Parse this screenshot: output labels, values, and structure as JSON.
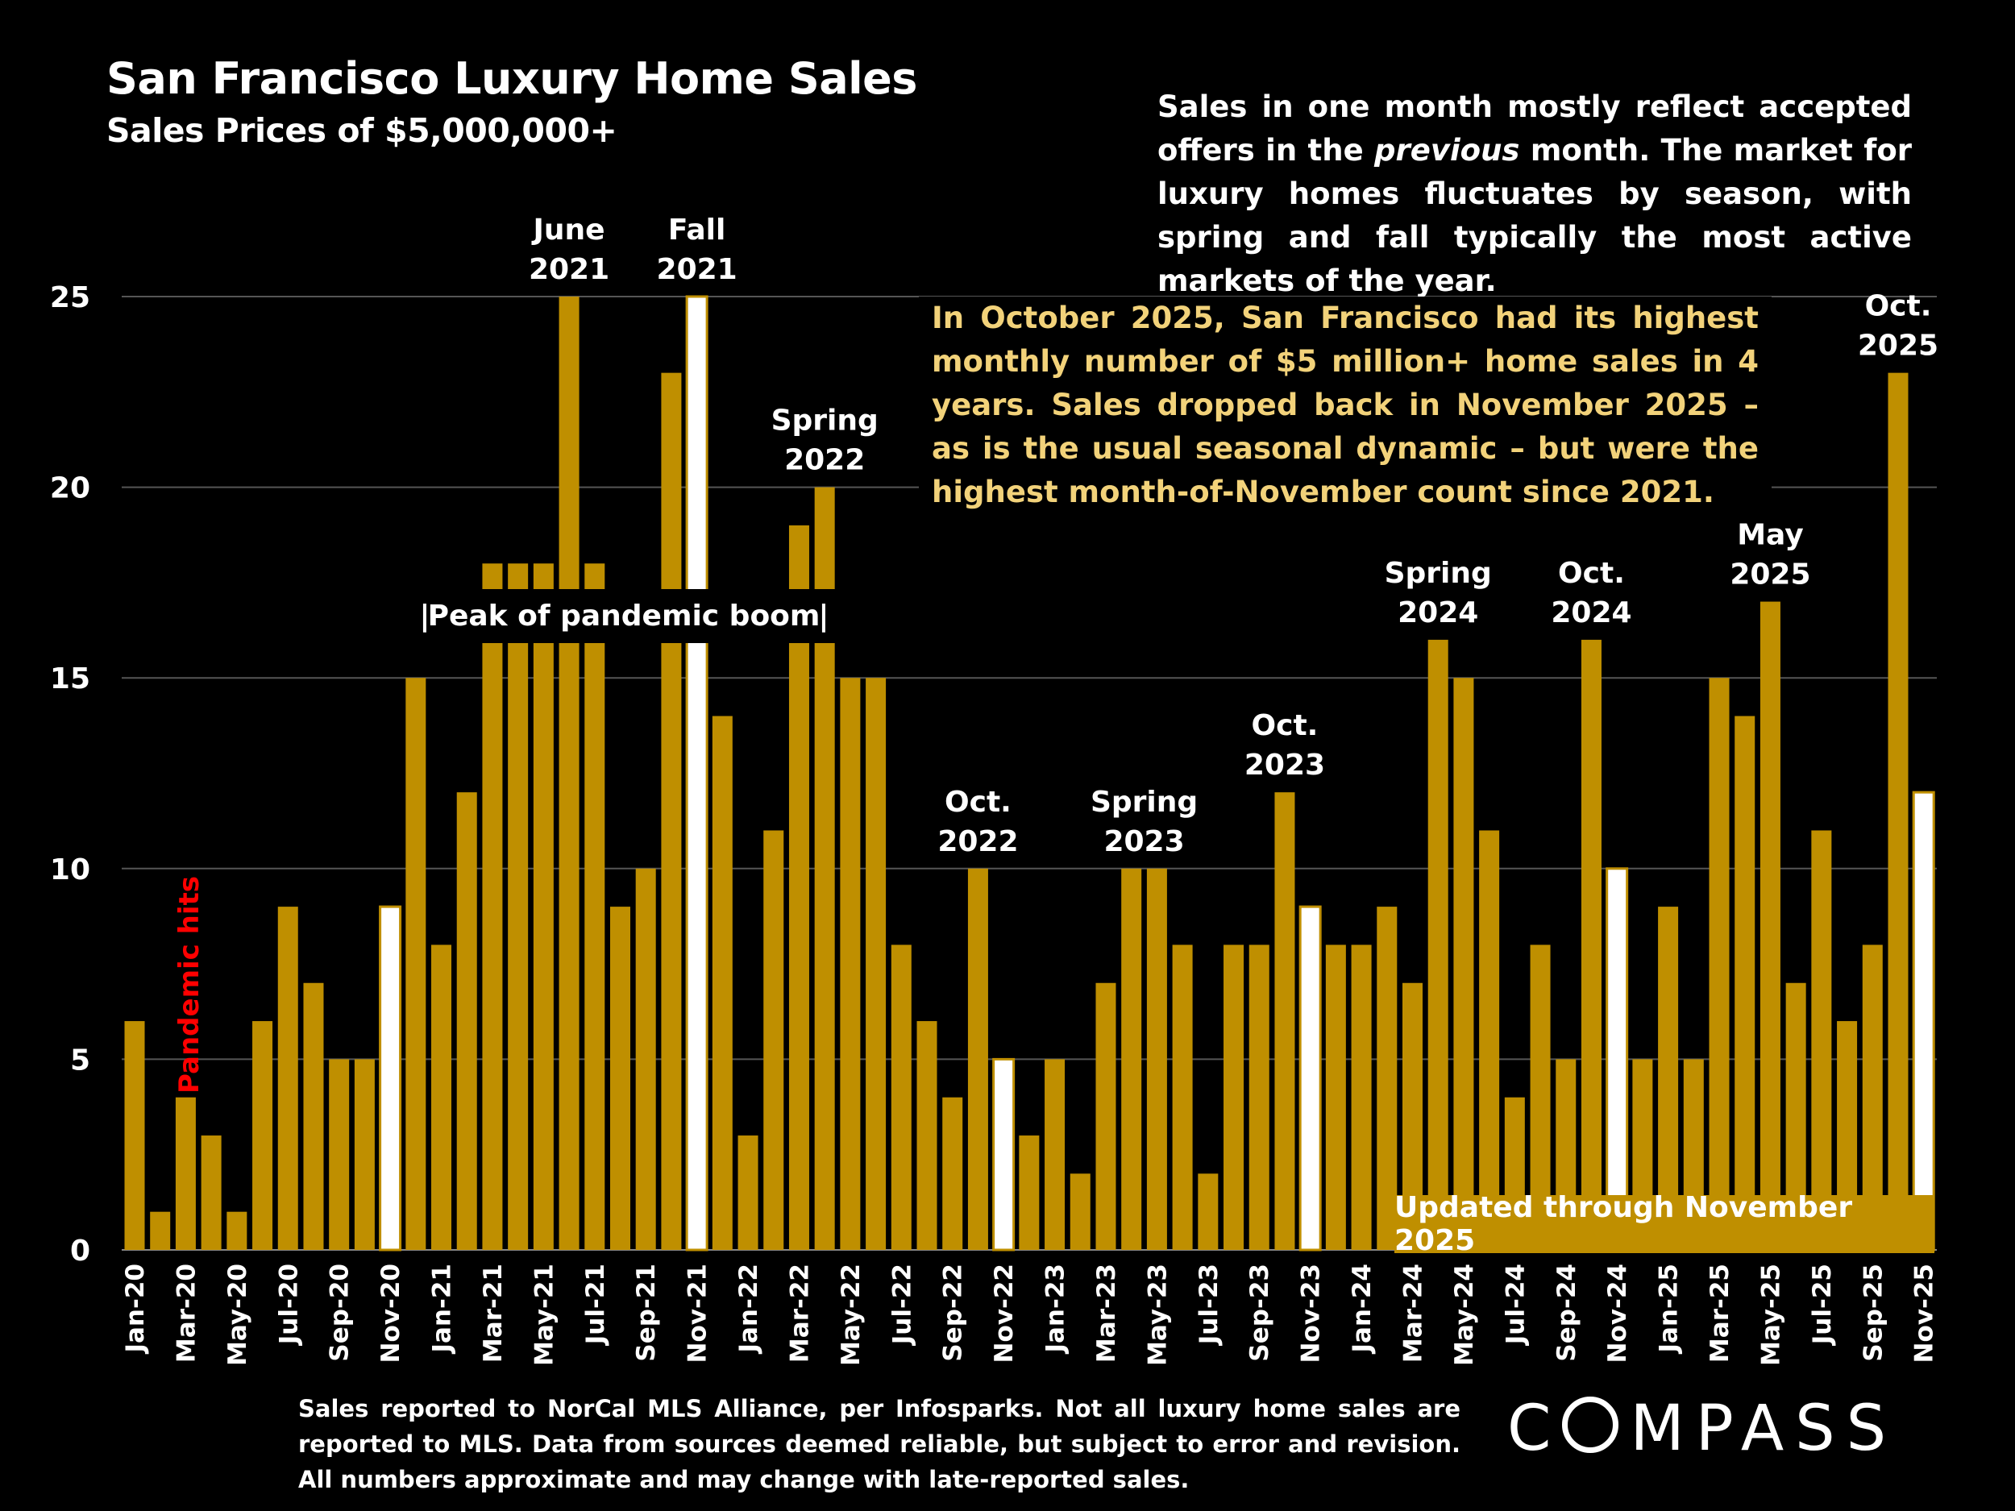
{
  "chart_data": {
    "type": "bar",
    "title": "San Francisco Luxury Home Sales",
    "subtitle": "Sales Prices of $5,000,000+",
    "xlabel": "",
    "ylabel": "",
    "ylim": [
      0,
      25
    ],
    "yticks": [
      0,
      5,
      10,
      15,
      20,
      25
    ],
    "grid": true,
    "bar_color": "#bf8f00",
    "highlight_color": "#ffffff",
    "highlight_rule": "November bars shown in white",
    "categories": [
      "Jan-20",
      "Feb-20",
      "Mar-20",
      "Apr-20",
      "May-20",
      "Jun-20",
      "Jul-20",
      "Aug-20",
      "Sep-20",
      "Oct-20",
      "Nov-20",
      "Dec-20",
      "Jan-21",
      "Feb-21",
      "Mar-21",
      "Apr-21",
      "May-21",
      "Jun-21",
      "Jul-21",
      "Aug-21",
      "Sep-21",
      "Oct-21",
      "Nov-21",
      "Dec-21",
      "Jan-22",
      "Feb-22",
      "Mar-22",
      "Apr-22",
      "May-22",
      "Jun-22",
      "Jul-22",
      "Aug-22",
      "Sep-22",
      "Oct-22",
      "Nov-22",
      "Dec-22",
      "Jan-23",
      "Feb-23",
      "Mar-23",
      "Apr-23",
      "May-23",
      "Jun-23",
      "Jul-23",
      "Aug-23",
      "Sep-23",
      "Oct-23",
      "Nov-23",
      "Dec-23",
      "Jan-24",
      "Feb-24",
      "Mar-24",
      "Apr-24",
      "May-24",
      "Jun-24",
      "Jul-24",
      "Aug-24",
      "Sep-24",
      "Oct-24",
      "Nov-24",
      "Dec-24",
      "Jan-25",
      "Feb-25",
      "Mar-25",
      "Apr-25",
      "May-25",
      "Jun-25",
      "Jul-25",
      "Aug-25",
      "Sep-25",
      "Oct-25",
      "Nov-25"
    ],
    "values": [
      6,
      1,
      4,
      3,
      1,
      6,
      9,
      7,
      5,
      5,
      9,
      15,
      8,
      12,
      18,
      18,
      18,
      25,
      18,
      9,
      10,
      23,
      25,
      14,
      3,
      11,
      19,
      20,
      15,
      15,
      8,
      6,
      4,
      10,
      5,
      3,
      5,
      2,
      7,
      10,
      10,
      8,
      2,
      8,
      8,
      12,
      9,
      8,
      8,
      9,
      7,
      16,
      15,
      11,
      4,
      8,
      5,
      16,
      10,
      5,
      9,
      5,
      15,
      14,
      17,
      7,
      11,
      6,
      8,
      23,
      12
    ],
    "annotations": [
      {
        "month": "Jun-21",
        "text": [
          "June",
          "2021"
        ]
      },
      {
        "month": "Nov-21",
        "text": [
          "Fall",
          "2021"
        ]
      },
      {
        "month": "Apr-22",
        "text": [
          "Spring",
          "2022"
        ]
      },
      {
        "month": "Oct-22",
        "text": [
          "Oct.",
          "2022"
        ]
      },
      {
        "month": "Apr-23",
        "text": [
          "Spring",
          "2023"
        ]
      },
      {
        "month": "Oct-23",
        "text": [
          "Oct.",
          "2023"
        ]
      },
      {
        "month": "Apr-24",
        "text": [
          "Spring",
          "2024"
        ]
      },
      {
        "month": "Oct-24",
        "text": [
          "Oct.",
          "2024"
        ]
      },
      {
        "month": "May-25",
        "text": [
          "May",
          "2025"
        ]
      },
      {
        "month": "Oct-25",
        "text": [
          "Oct.",
          "2025"
        ]
      }
    ],
    "pandemic_label": "Pandemic hits",
    "pandemic_color": "#ff0000",
    "boom_label": "Peak of pandemic boom",
    "boom_bar": "|"
  },
  "note": "Sales in one month mostly reflect accepted offers in the previous month. The market for luxury homes fluctuates by season, with spring and fall typically the most active markets of the year.",
  "note_parts": {
    "a": "Sales in one month mostly reflect accepted offers in the ",
    "em": "previous",
    "b": " month. The market for luxury homes fluctuates by season, with spring and fall typically the most active markets of the year."
  },
  "callout": "In October 2025, San Francisco had its highest monthly number of $5 million+ home sales in 4 years. Sales dropped back in November 2025 – as is the usual seasonal dynamic – but were the highest month-of-November count since 2021.",
  "callout_color": "#f2d27a",
  "updated": "Updated through November 2025",
  "footnote": "Sales reported to NorCal MLS Alliance, per  Infosparks. Not all luxury home sales are reported to MLS. Data from sources deemed reliable, but subject to error and revision. All numbers approximate and may change with late-reported sales.",
  "logo": "COMPASS"
}
